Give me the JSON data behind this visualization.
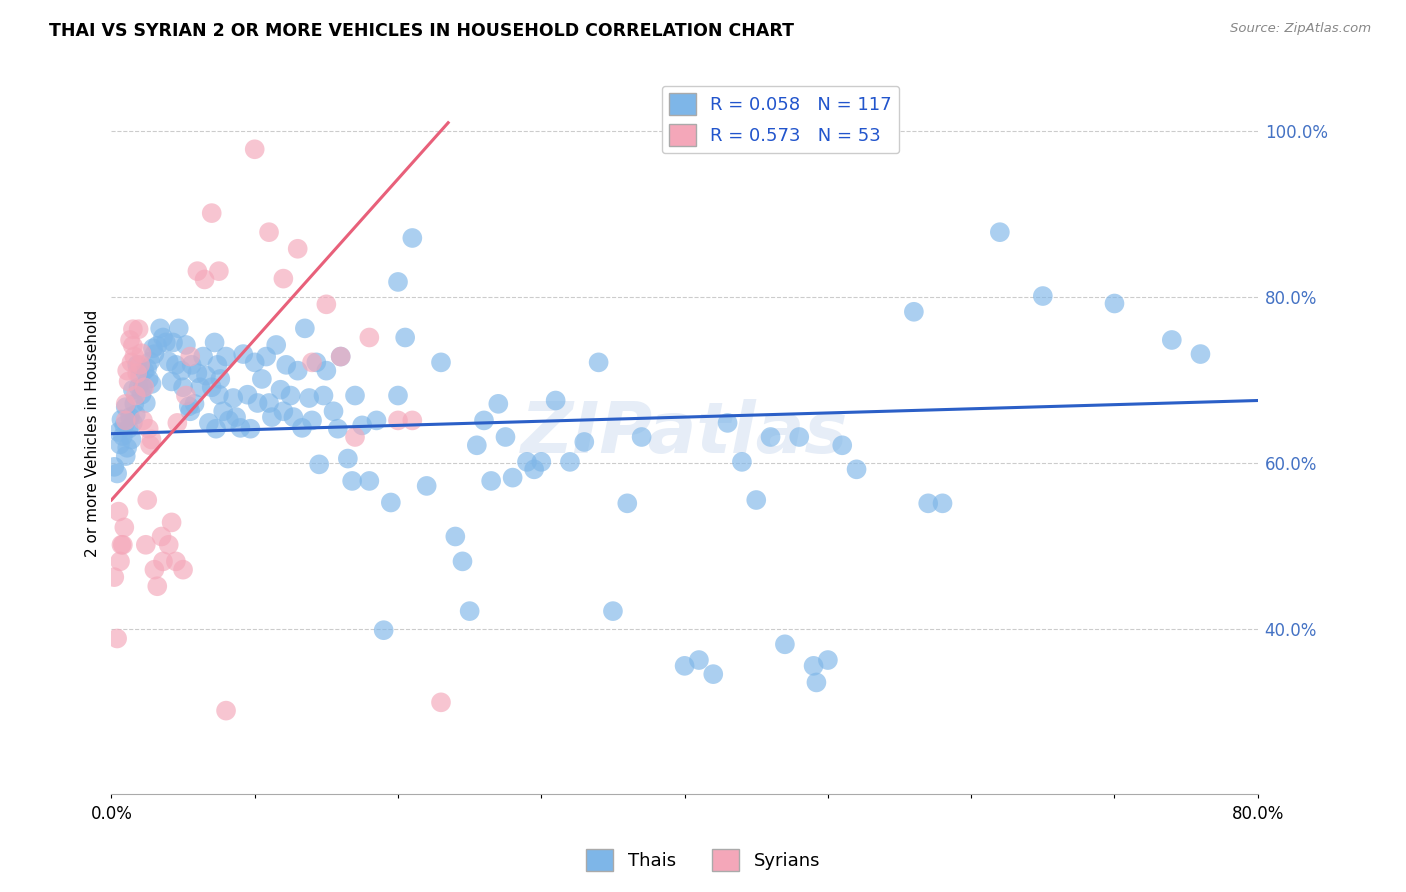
{
  "title": "THAI VS SYRIAN 2 OR MORE VEHICLES IN HOUSEHOLD CORRELATION CHART",
  "source": "Source: ZipAtlas.com",
  "ylabel": "2 or more Vehicles in Household",
  "xlim": [
    0.0,
    0.8
  ],
  "ylim": [
    0.2,
    1.07
  ],
  "xticks": [
    0.0,
    0.1,
    0.2,
    0.3,
    0.4,
    0.5,
    0.6,
    0.7,
    0.8
  ],
  "xticklabels": [
    "0.0%",
    "",
    "",
    "",
    "",
    "",
    "",
    "",
    "80.0%"
  ],
  "yticks_right": [
    0.4,
    0.6,
    0.8,
    1.0
  ],
  "ytick_labels_right": [
    "40.0%",
    "60.0%",
    "80.0%",
    "100.0%"
  ],
  "watermark": "ZIPatlas",
  "legend_R_thai": "0.058",
  "legend_N_thai": "117",
  "legend_R_syrian": "0.573",
  "legend_N_syrian": "53",
  "thai_color": "#7EB6E8",
  "syrian_color": "#F4A7B9",
  "thai_line_color": "#2B5FC7",
  "syrian_line_color": "#E8607A",
  "thai_line": [
    [
      0.0,
      0.635
    ],
    [
      0.8,
      0.675
    ]
  ],
  "syrian_line": [
    [
      0.0,
      0.555
    ],
    [
      0.235,
      1.01
    ]
  ],
  "thai_points": [
    [
      0.002,
      0.595
    ],
    [
      0.004,
      0.587
    ],
    [
      0.005,
      0.637
    ],
    [
      0.006,
      0.622
    ],
    [
      0.007,
      0.652
    ],
    [
      0.008,
      0.632
    ],
    [
      0.009,
      0.645
    ],
    [
      0.01,
      0.667
    ],
    [
      0.01,
      0.608
    ],
    [
      0.011,
      0.618
    ],
    [
      0.012,
      0.641
    ],
    [
      0.013,
      0.655
    ],
    [
      0.014,
      0.628
    ],
    [
      0.015,
      0.648
    ],
    [
      0.015,
      0.688
    ],
    [
      0.016,
      0.671
    ],
    [
      0.017,
      0.658
    ],
    [
      0.018,
      0.718
    ],
    [
      0.019,
      0.691
    ],
    [
      0.02,
      0.705
    ],
    [
      0.021,
      0.682
    ],
    [
      0.022,
      0.691
    ],
    [
      0.023,
      0.711
    ],
    [
      0.024,
      0.672
    ],
    [
      0.025,
      0.714
    ],
    [
      0.026,
      0.701
    ],
    [
      0.027,
      0.722
    ],
    [
      0.028,
      0.695
    ],
    [
      0.029,
      0.738
    ],
    [
      0.03,
      0.731
    ],
    [
      0.032,
      0.741
    ],
    [
      0.034,
      0.762
    ],
    [
      0.036,
      0.751
    ],
    [
      0.038,
      0.745
    ],
    [
      0.04,
      0.722
    ],
    [
      0.042,
      0.698
    ],
    [
      0.043,
      0.745
    ],
    [
      0.045,
      0.718
    ],
    [
      0.047,
      0.762
    ],
    [
      0.049,
      0.711
    ],
    [
      0.05,
      0.691
    ],
    [
      0.052,
      0.742
    ],
    [
      0.054,
      0.668
    ],
    [
      0.055,
      0.662
    ],
    [
      0.056,
      0.718
    ],
    [
      0.058,
      0.671
    ],
    [
      0.06,
      0.708
    ],
    [
      0.062,
      0.691
    ],
    [
      0.064,
      0.728
    ],
    [
      0.066,
      0.705
    ],
    [
      0.068,
      0.648
    ],
    [
      0.07,
      0.691
    ],
    [
      0.072,
      0.745
    ],
    [
      0.073,
      0.641
    ],
    [
      0.074,
      0.718
    ],
    [
      0.075,
      0.682
    ],
    [
      0.076,
      0.701
    ],
    [
      0.078,
      0.662
    ],
    [
      0.08,
      0.728
    ],
    [
      0.082,
      0.651
    ],
    [
      0.085,
      0.678
    ],
    [
      0.087,
      0.655
    ],
    [
      0.09,
      0.642
    ],
    [
      0.092,
      0.731
    ],
    [
      0.095,
      0.682
    ],
    [
      0.097,
      0.641
    ],
    [
      0.1,
      0.721
    ],
    [
      0.102,
      0.672
    ],
    [
      0.105,
      0.701
    ],
    [
      0.108,
      0.728
    ],
    [
      0.11,
      0.672
    ],
    [
      0.112,
      0.655
    ],
    [
      0.115,
      0.742
    ],
    [
      0.118,
      0.688
    ],
    [
      0.12,
      0.662
    ],
    [
      0.122,
      0.718
    ],
    [
      0.125,
      0.681
    ],
    [
      0.127,
      0.655
    ],
    [
      0.13,
      0.711
    ],
    [
      0.133,
      0.642
    ],
    [
      0.135,
      0.762
    ],
    [
      0.138,
      0.678
    ],
    [
      0.14,
      0.651
    ],
    [
      0.143,
      0.721
    ],
    [
      0.145,
      0.598
    ],
    [
      0.148,
      0.681
    ],
    [
      0.15,
      0.711
    ],
    [
      0.155,
      0.662
    ],
    [
      0.158,
      0.641
    ],
    [
      0.16,
      0.728
    ],
    [
      0.165,
      0.605
    ],
    [
      0.168,
      0.578
    ],
    [
      0.17,
      0.681
    ],
    [
      0.175,
      0.645
    ],
    [
      0.18,
      0.578
    ],
    [
      0.185,
      0.651
    ],
    [
      0.19,
      0.398
    ],
    [
      0.195,
      0.552
    ],
    [
      0.2,
      0.681
    ],
    [
      0.2,
      0.818
    ],
    [
      0.205,
      0.751
    ],
    [
      0.21,
      0.871
    ],
    [
      0.22,
      0.572
    ],
    [
      0.23,
      0.721
    ],
    [
      0.24,
      0.511
    ],
    [
      0.245,
      0.481
    ],
    [
      0.25,
      0.421
    ],
    [
      0.255,
      0.621
    ],
    [
      0.26,
      0.651
    ],
    [
      0.265,
      0.578
    ],
    [
      0.27,
      0.671
    ],
    [
      0.275,
      0.631
    ],
    [
      0.28,
      0.582
    ],
    [
      0.29,
      0.601
    ],
    [
      0.295,
      0.592
    ],
    [
      0.3,
      0.601
    ],
    [
      0.31,
      0.675
    ],
    [
      0.32,
      0.601
    ],
    [
      0.33,
      0.625
    ],
    [
      0.34,
      0.721
    ],
    [
      0.35,
      0.421
    ],
    [
      0.36,
      0.551
    ],
    [
      0.37,
      0.631
    ],
    [
      0.4,
      0.355
    ],
    [
      0.41,
      0.362
    ],
    [
      0.42,
      0.345
    ],
    [
      0.43,
      0.648
    ],
    [
      0.44,
      0.601
    ],
    [
      0.45,
      0.555
    ],
    [
      0.46,
      0.631
    ],
    [
      0.47,
      0.381
    ],
    [
      0.48,
      0.631
    ],
    [
      0.49,
      0.355
    ],
    [
      0.492,
      0.335
    ],
    [
      0.5,
      0.362
    ],
    [
      0.51,
      0.621
    ],
    [
      0.52,
      0.592
    ],
    [
      0.56,
      0.782
    ],
    [
      0.57,
      0.551
    ],
    [
      0.58,
      0.551
    ],
    [
      0.62,
      0.878
    ],
    [
      0.65,
      0.801
    ],
    [
      0.7,
      0.792
    ],
    [
      0.74,
      0.748
    ],
    [
      0.76,
      0.731
    ]
  ],
  "syrian_points": [
    [
      0.002,
      0.462
    ],
    [
      0.004,
      0.388
    ],
    [
      0.005,
      0.541
    ],
    [
      0.006,
      0.481
    ],
    [
      0.007,
      0.501
    ],
    [
      0.008,
      0.501
    ],
    [
      0.009,
      0.522
    ],
    [
      0.01,
      0.651
    ],
    [
      0.01,
      0.671
    ],
    [
      0.011,
      0.711
    ],
    [
      0.012,
      0.698
    ],
    [
      0.013,
      0.748
    ],
    [
      0.014,
      0.721
    ],
    [
      0.015,
      0.741
    ],
    [
      0.015,
      0.761
    ],
    [
      0.016,
      0.728
    ],
    [
      0.017,
      0.681
    ],
    [
      0.018,
      0.708
    ],
    [
      0.019,
      0.761
    ],
    [
      0.02,
      0.718
    ],
    [
      0.021,
      0.732
    ],
    [
      0.022,
      0.651
    ],
    [
      0.023,
      0.691
    ],
    [
      0.024,
      0.501
    ],
    [
      0.025,
      0.555
    ],
    [
      0.026,
      0.641
    ],
    [
      0.027,
      0.621
    ],
    [
      0.028,
      0.628
    ],
    [
      0.03,
      0.471
    ],
    [
      0.032,
      0.451
    ],
    [
      0.035,
      0.511
    ],
    [
      0.036,
      0.481
    ],
    [
      0.04,
      0.501
    ],
    [
      0.042,
      0.528
    ],
    [
      0.045,
      0.481
    ],
    [
      0.046,
      0.648
    ],
    [
      0.05,
      0.471
    ],
    [
      0.052,
      0.681
    ],
    [
      0.055,
      0.728
    ],
    [
      0.06,
      0.831
    ],
    [
      0.065,
      0.821
    ],
    [
      0.07,
      0.901
    ],
    [
      0.075,
      0.831
    ],
    [
      0.08,
      0.301
    ],
    [
      0.1,
      0.978
    ],
    [
      0.11,
      0.878
    ],
    [
      0.12,
      0.822
    ],
    [
      0.13,
      0.858
    ],
    [
      0.14,
      0.721
    ],
    [
      0.15,
      0.791
    ],
    [
      0.16,
      0.728
    ],
    [
      0.17,
      0.631
    ],
    [
      0.18,
      0.751
    ],
    [
      0.2,
      0.651
    ],
    [
      0.21,
      0.651
    ],
    [
      0.23,
      0.311
    ]
  ]
}
